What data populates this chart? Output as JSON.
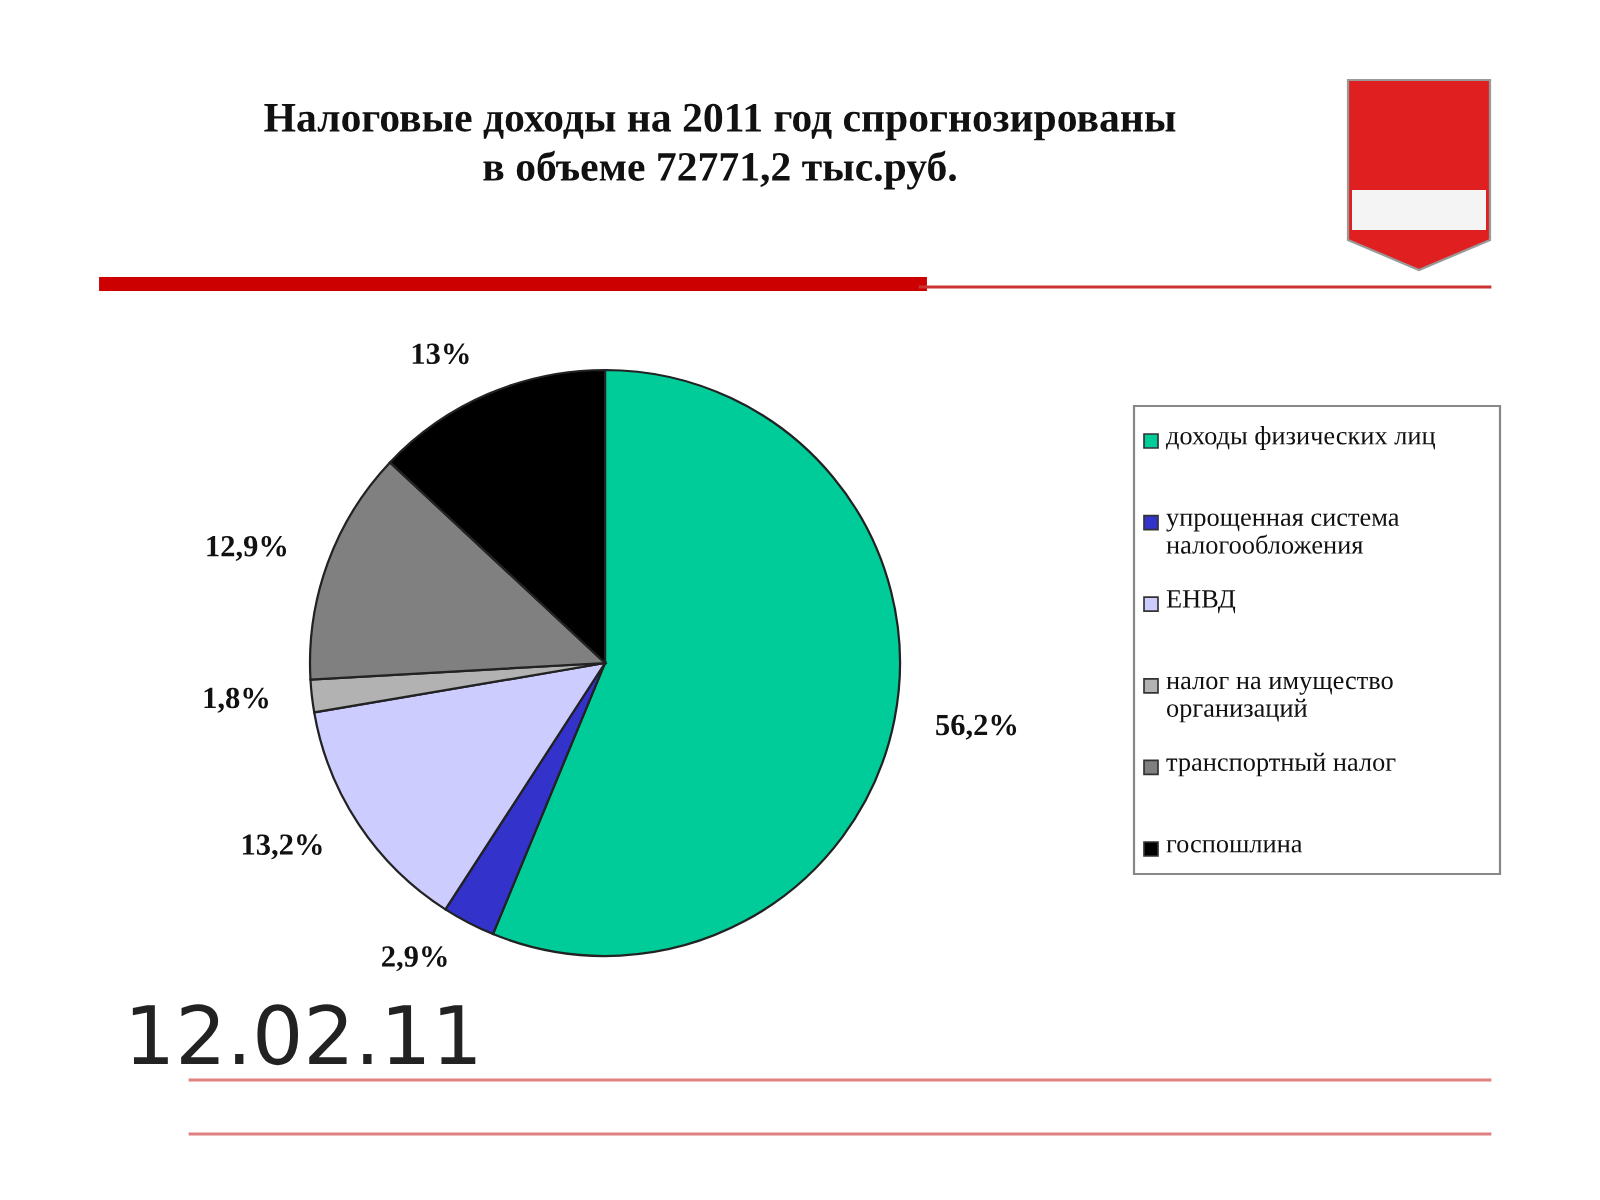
{
  "chart_data": {
    "type": "pie",
    "title": "Налоговые доходы на 2011 год спрогнозированы\nв объеме 72771,2 тыс.руб.",
    "categories": [
      "доходы физических лиц",
      "упрощенная система налогообложения",
      "ЕНВД",
      "налог на имущество организаций",
      "транспортный налог",
      "госпошлина"
    ],
    "values": [
      56.2,
      2.9,
      13.2,
      1.8,
      12.9,
      13
    ],
    "colors": [
      "#00cc99",
      "#3333cc",
      "#ccccff",
      "#b2b2b2",
      "#808080",
      "#000000"
    ],
    "value_labels": [
      "56,2%",
      "2,9%",
      "13,2%",
      "1,8%",
      "12,9%",
      "13%"
    ],
    "legend": "right",
    "annotations": [
      "12.02.11"
    ]
  }
}
